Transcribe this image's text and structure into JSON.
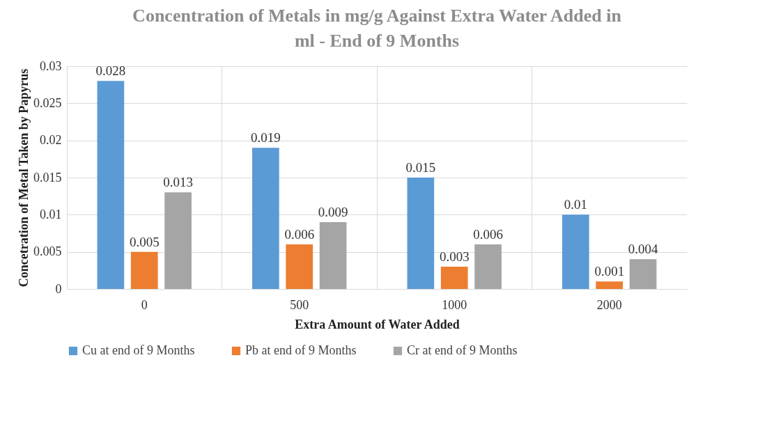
{
  "chart_data": {
    "type": "bar",
    "title": "Concentration of Metals in mg/g Against Extra Water Added in ml - End of  9 Months",
    "xlabel": "Extra Amount of Water Added",
    "ylabel": "Concetration of Metal Taken by Papyrus",
    "categories": [
      "0",
      "500",
      "1000",
      "2000"
    ],
    "series": [
      {
        "name": "Cu at end of 9 Months",
        "color": "#5b9bd5",
        "values": [
          0.028,
          0.019,
          0.015,
          0.01
        ]
      },
      {
        "name": "Pb at end of 9 Months",
        "color": "#ed7d31",
        "values": [
          0.005,
          0.006,
          0.003,
          0.001
        ]
      },
      {
        "name": "Cr at end of 9 Months",
        "color": "#a5a5a5",
        "values": [
          0.013,
          0.009,
          0.006,
          0.004
        ]
      }
    ],
    "ylim": [
      0,
      0.03
    ],
    "yticks": [
      0,
      0.005,
      0.01,
      0.015,
      0.02,
      0.025,
      0.03
    ],
    "grid": true,
    "legend": "bottom",
    "data_labels": true
  }
}
